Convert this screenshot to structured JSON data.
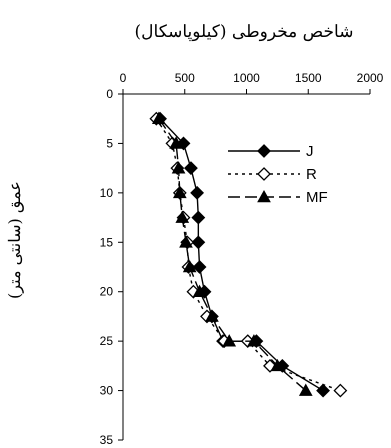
{
  "chart_data": {
    "type": "line",
    "title": "شاخص مخروطی (کیلوپاسکال)",
    "ylabel": "عمق (سانتی متر)",
    "xlabel": "",
    "xlim": [
      0,
      2000
    ],
    "ylim": [
      0,
      35
    ],
    "y_inverted": true,
    "x_axis_position": "top",
    "xticks": [
      "0",
      "500",
      "1000",
      "1500",
      "2000"
    ],
    "yticks": [
      "0",
      "5",
      "10",
      "15",
      "20",
      "25",
      "30",
      "35"
    ],
    "legend_position": "top-right",
    "grid": false,
    "series": [
      {
        "name": "J",
        "marker": "filled-diamond",
        "line_style": "solid",
        "color": "#000000",
        "x": [
          300,
          490,
          550,
          600,
          610,
          610,
          620,
          660,
          720,
          810,
          1080,
          1290,
          1620
        ],
        "y": [
          2.5,
          5,
          7.5,
          10,
          12.5,
          15,
          17.5,
          20,
          22.5,
          25,
          25,
          27.5,
          30
        ]
      },
      {
        "name": "R",
        "marker": "open-diamond",
        "line_style": "dotted",
        "color": "#000000",
        "x": [
          270,
          400,
          440,
          460,
          490,
          520,
          530,
          570,
          680,
          820,
          1010,
          1190,
          1760
        ],
        "y": [
          2.5,
          5,
          7.5,
          10,
          12.5,
          15,
          17.5,
          20,
          22.5,
          25,
          25,
          27.5,
          30
        ]
      },
      {
        "name": "MF",
        "marker": "filled-triangle",
        "line_style": "long-dash",
        "color": "#000000",
        "x": [
          290,
          430,
          450,
          460,
          480,
          510,
          540,
          620,
          720,
          860,
          1060,
          1250,
          1480
        ],
        "y": [
          2.5,
          5,
          7.5,
          10,
          12.5,
          15,
          17.5,
          20,
          22.5,
          25,
          25,
          27.5,
          30
        ]
      }
    ]
  }
}
